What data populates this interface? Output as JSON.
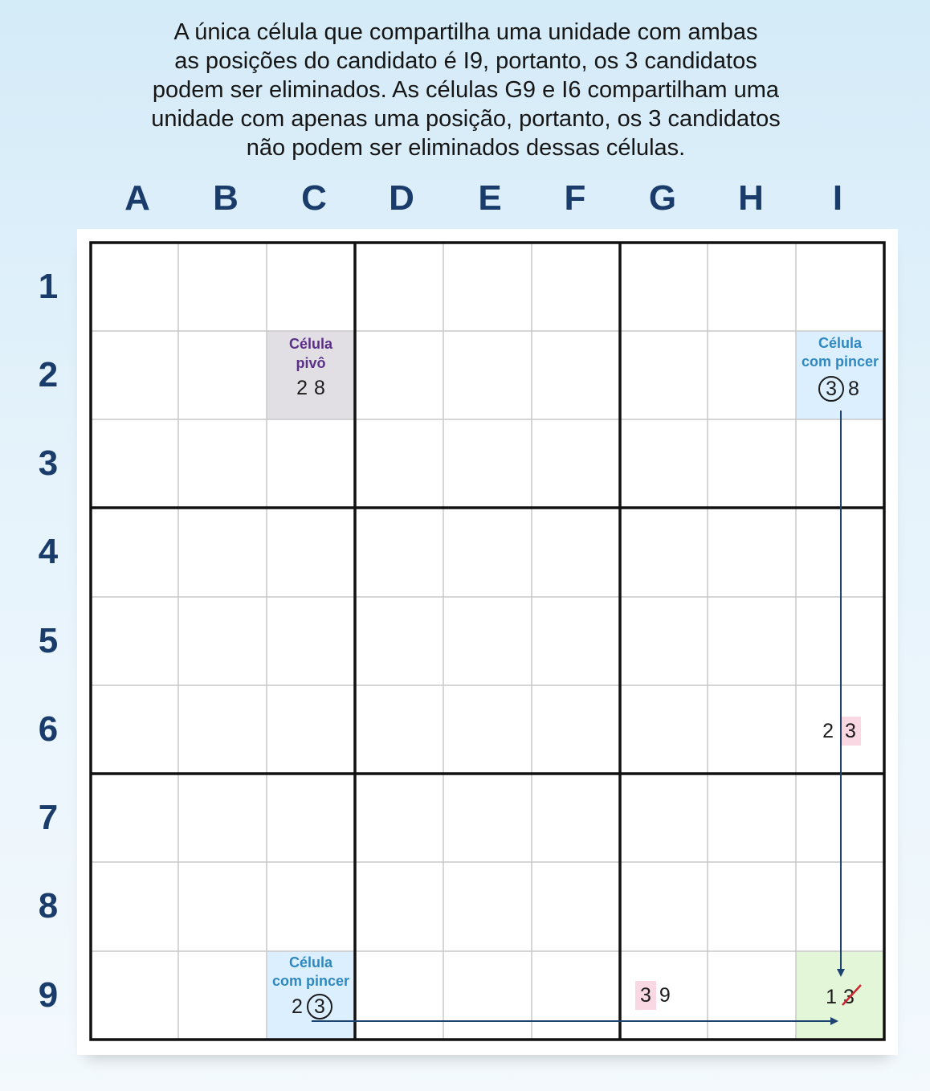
{
  "caption": [
    "A única célula que compartilha uma unidade com ambas",
    "as posições do candidato é I9, portanto, os 3 candidatos",
    "podem ser eliminados. As células G9 e I6 compartilham uma",
    "unidade com apenas uma posição, portanto, os 3 candidatos",
    "não podem ser eliminados dessas células."
  ],
  "columns": [
    "A",
    "B",
    "C",
    "D",
    "E",
    "F",
    "G",
    "H",
    "I"
  ],
  "rows": [
    "1",
    "2",
    "3",
    "4",
    "5",
    "6",
    "7",
    "8",
    "9"
  ],
  "cells": {
    "c2": {
      "title": [
        "Célula",
        "pivô"
      ],
      "candidates": [
        "2",
        "8"
      ]
    },
    "i2": {
      "title": [
        "Célula",
        "com pincer"
      ],
      "candidates": [
        "3",
        "8"
      ],
      "circled": "3"
    },
    "i6": {
      "candidates": [
        "2",
        "3"
      ],
      "highlighted": "3"
    },
    "c9": {
      "title": [
        "Célula",
        "com pincer"
      ],
      "candidates": [
        "2",
        "3"
      ],
      "circled": "3"
    },
    "g9": {
      "candidates": [
        "3",
        "9"
      ],
      "highlighted": "3"
    },
    "i9": {
      "candidates": [
        "1",
        "3"
      ],
      "eliminated": "3"
    }
  },
  "colors": {
    "label_blue": "#1a3c6b",
    "pivot_bg": "#e1dfe4",
    "pincer_bg": "#dcefff",
    "target_bg": "#e3f6d8",
    "highlight_pink": "#f9d8e3",
    "arrow": "#1d4470",
    "strike_red": "#d0262f"
  }
}
